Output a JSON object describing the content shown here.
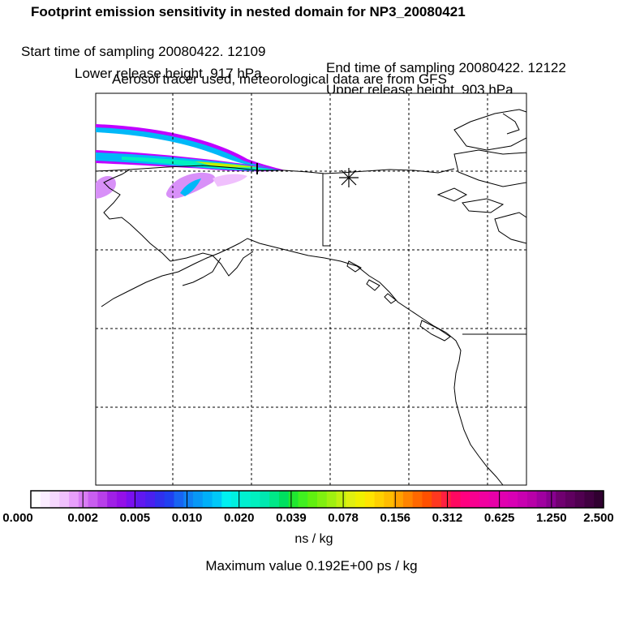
{
  "header": {
    "title": "Footprint emission sensitivity in nested domain for NP3_20080421",
    "start": "Start time of sampling 20080422. 12109",
    "end": "End time of sampling 20080422. 12122",
    "lower": "Lower release height  917 hPa",
    "upper": "Upper release height  903 hPa",
    "tracer": "Aerosol tracer used, meteorological data are from GFS"
  },
  "colorbar": {
    "tick_labels": [
      "0.000",
      "0.002",
      "0.005",
      "0.010",
      "0.020",
      "0.039",
      "0.078",
      "0.156",
      "0.312",
      "0.625",
      "1.250",
      "2.500"
    ],
    "unit": "ns / kg",
    "max_value_text": "Maximum value  0.192E+00 ps / kg",
    "segment_colors": [
      "#ffffff",
      "#fbecff",
      "#f6d8fe",
      "#f0c0fd",
      "#e89ffb",
      "#d97cf5",
      "#c95ef0",
      "#b83fea",
      "#a020e6",
      "#9410e8",
      "#7a10f0",
      "#6018f0",
      "#4a20f0",
      "#3030ee",
      "#2040f0",
      "#1864f2",
      "#1080f4",
      "#0898f6",
      "#00b0f8",
      "#00c8f8",
      "#00f0f0",
      "#00f0e0",
      "#00f0d0",
      "#00f0c0",
      "#00e8b0",
      "#00e888",
      "#00e060",
      "#20e830",
      "#40f020",
      "#60f010",
      "#80f010",
      "#a0f010",
      "#c0f010",
      "#e0f010",
      "#f0f000",
      "#ffe400",
      "#ffd000",
      "#ffbc00",
      "#ffa000",
      "#ff8400",
      "#ff6800",
      "#ff5000",
      "#ff3820",
      "#ff2040",
      "#ff0860",
      "#ff0080",
      "#f80090",
      "#f000a0",
      "#e800a8",
      "#e000b0",
      "#d800b4",
      "#c800b0",
      "#b800a8",
      "#a000a0",
      "#880090",
      "#700070",
      "#600060",
      "#500050",
      "#400040",
      "#300030"
    ]
  },
  "map": {
    "receptor_marker": "asterisk-icon",
    "plume_colors": {
      "outer": "#c000ff",
      "mid": "#00b8f8",
      "inner": "#00f0c0",
      "core": "#c0f000"
    }
  }
}
